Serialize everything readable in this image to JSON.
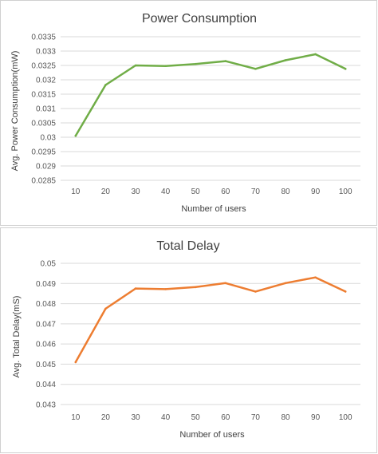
{
  "chart_data": [
    {
      "type": "line",
      "title": "Power Consumption",
      "xlabel": "Number of users",
      "ylabel": "Avg. Power Consumption(mW)",
      "categories": [
        "10",
        "20",
        "30",
        "40",
        "50",
        "60",
        "70",
        "80",
        "90",
        "100"
      ],
      "series": [
        {
          "values": [
            0.03005,
            0.03182,
            0.0325,
            0.03248,
            0.03255,
            0.03265,
            0.03238,
            0.03268,
            0.03289,
            0.03238
          ]
        }
      ],
      "ylim": [
        0.0285,
        0.0335
      ],
      "yticks": [
        "0.0285",
        "0.029",
        "0.0295",
        "0.03",
        "0.0305",
        "0.031",
        "0.0315",
        "0.032",
        "0.0325",
        "0.033",
        "0.0335"
      ],
      "grid": true,
      "line_color": "#70AD47"
    },
    {
      "type": "line",
      "title": "Total Delay",
      "xlabel": "Number of users",
      "ylabel": "Avg. Total Delay(mS)",
      "categories": [
        "10",
        "20",
        "30",
        "40",
        "50",
        "60",
        "70",
        "80",
        "90",
        "100"
      ],
      "series": [
        {
          "values": [
            0.0451,
            0.04775,
            0.04875,
            0.04872,
            0.04882,
            0.04902,
            0.0486,
            0.04902,
            0.0493,
            0.0486
          ]
        }
      ],
      "ylim": [
        0.043,
        0.05
      ],
      "yticks": [
        "0.043",
        "0.044",
        "0.045",
        "0.046",
        "0.047",
        "0.048",
        "0.049",
        "0.05"
      ],
      "grid": true,
      "line_color": "#ED7D31"
    }
  ]
}
